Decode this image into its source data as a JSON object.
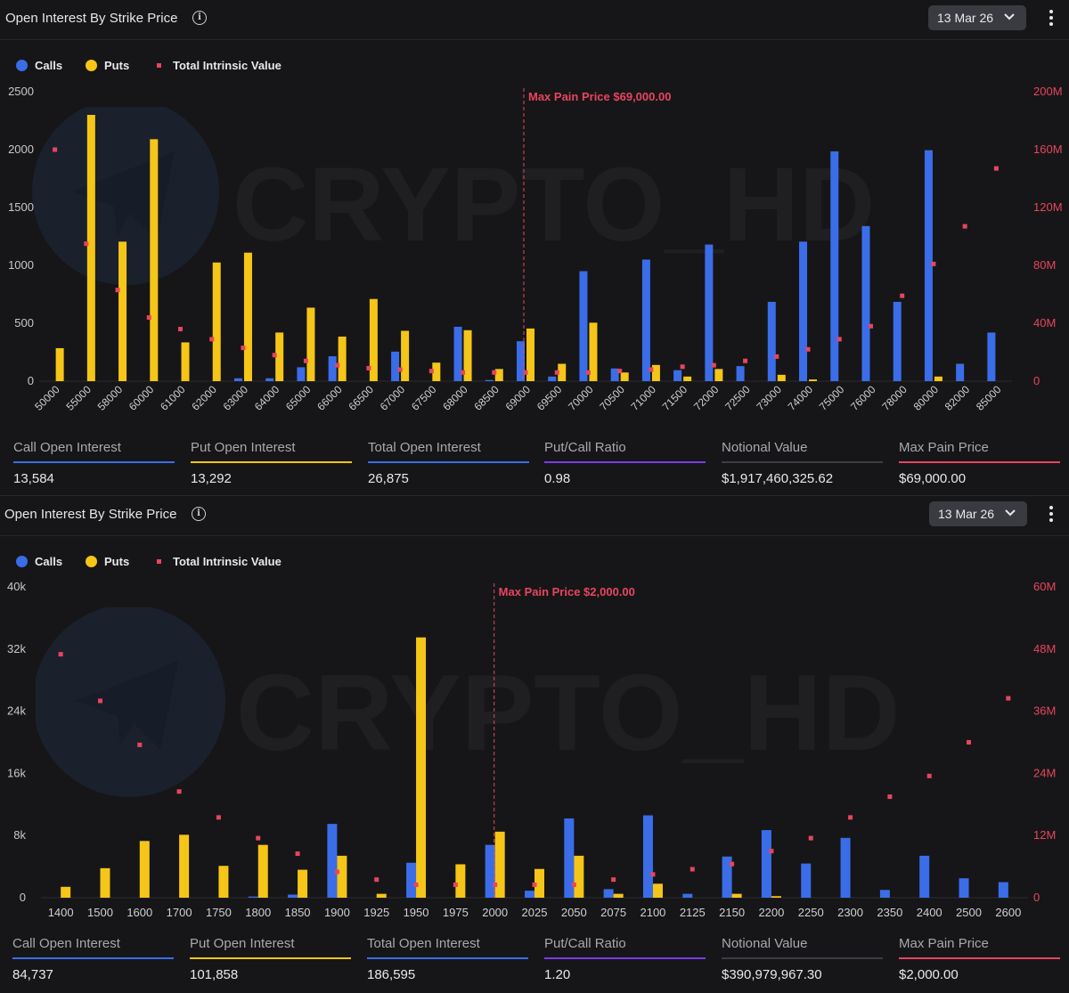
{
  "panels": [
    {
      "title": "Open Interest By Strike Price",
      "date": "13 Mar 26",
      "legend": {
        "calls": "Calls",
        "puts": "Puts",
        "intrinsic": "Total Intrinsic Value"
      },
      "watermark": "CRYPTO_HD",
      "stats": [
        {
          "label": "Call Open Interest",
          "value": "13,584",
          "color": "#3b6de8"
        },
        {
          "label": "Put Open Interest",
          "value": "13,292",
          "color": "#f5c518"
        },
        {
          "label": "Total Open Interest",
          "value": "26,875",
          "color": "#3b6de8"
        },
        {
          "label": "Put/Call Ratio",
          "value": "0.98",
          "color": "#7a3be8"
        },
        {
          "label": "Notional Value",
          "value": "$1,917,460,325.62",
          "color": "#3c3d44"
        },
        {
          "label": "Max Pain Price",
          "value": "$69,000.00",
          "color": "#e8455e"
        }
      ]
    },
    {
      "title": "Open Interest By Strike Price",
      "date": "13 Mar 26",
      "legend": {
        "calls": "Calls",
        "puts": "Puts",
        "intrinsic": "Total Intrinsic Value"
      },
      "watermark": "CRYPTO_HD",
      "stats": [
        {
          "label": "Call Open Interest",
          "value": "84,737",
          "color": "#3b6de8"
        },
        {
          "label": "Put Open Interest",
          "value": "101,858",
          "color": "#f5c518"
        },
        {
          "label": "Total Open Interest",
          "value": "186,595",
          "color": "#3b6de8"
        },
        {
          "label": "Put/Call Ratio",
          "value": "1.20",
          "color": "#7a3be8"
        },
        {
          "label": "Notional Value",
          "value": "$390,979,967.30",
          "color": "#3c3d44"
        },
        {
          "label": "Max Pain Price",
          "value": "$2,000.00",
          "color": "#e8455e"
        }
      ]
    }
  ],
  "colors": {
    "calls": "#3b6de8",
    "puts": "#f5c518",
    "intrinsic": "#e8455e"
  },
  "chart_data": [
    {
      "type": "bar",
      "title": "Open Interest By Strike Price",
      "categories": [
        "50000",
        "55000",
        "58000",
        "60000",
        "61000",
        "62000",
        "63000",
        "64000",
        "65000",
        "66000",
        "66500",
        "67000",
        "67500",
        "68000",
        "68500",
        "69000",
        "69500",
        "70000",
        "70500",
        "71000",
        "71500",
        "72000",
        "72500",
        "73000",
        "74000",
        "75000",
        "76000",
        "78000",
        "80000",
        "82000",
        "85000"
      ],
      "series": [
        {
          "name": "Calls",
          "axis": "left",
          "values": [
            0,
            0,
            0,
            0,
            0,
            0,
            25,
            25,
            120,
            215,
            0,
            255,
            0,
            470,
            10,
            345,
            40,
            950,
            110,
            1050,
            95,
            1180,
            130,
            685,
            1205,
            1985,
            1340,
            685,
            1995,
            150,
            420
          ]
        },
        {
          "name": "Puts",
          "axis": "left",
          "values": [
            285,
            2300,
            1205,
            2090,
            335,
            1025,
            1110,
            420,
            635,
            385,
            710,
            435,
            160,
            440,
            105,
            455,
            150,
            505,
            75,
            140,
            40,
            105,
            0,
            55,
            15,
            0,
            0,
            0,
            40,
            0,
            0
          ]
        },
        {
          "name": "Total Intrinsic Value",
          "axis": "right",
          "type": "scatter",
          "values": [
            160,
            95,
            63,
            44,
            36,
            29,
            23,
            18,
            14,
            11,
            9,
            8,
            7,
            6,
            6,
            6,
            6,
            6,
            7,
            8,
            10,
            11,
            14,
            17,
            22,
            29,
            38,
            59,
            81,
            107,
            147
          ]
        }
      ],
      "ylim": [
        0,
        2500
      ],
      "yticks": [
        "0",
        "500",
        "1000",
        "1500",
        "2000",
        "2500"
      ],
      "y2lim": [
        0,
        200
      ],
      "y2ticks": [
        "0",
        "40M",
        "80M",
        "120M",
        "160M",
        "200M"
      ],
      "max_pain_index": 15,
      "max_pain_label": "Max Pain Price $69,000.00"
    },
    {
      "type": "bar",
      "title": "Open Interest By Strike Price",
      "categories": [
        "1400",
        "1500",
        "1600",
        "1700",
        "1750",
        "1800",
        "1850",
        "1900",
        "1925",
        "1950",
        "1975",
        "2000",
        "2025",
        "2050",
        "2075",
        "2100",
        "2125",
        "2150",
        "2200",
        "2250",
        "2300",
        "2350",
        "2400",
        "2500",
        "2600"
      ],
      "series": [
        {
          "name": "Calls",
          "axis": "left",
          "values": [
            0,
            0,
            0,
            0,
            0,
            150,
            400,
            9500,
            0,
            4500,
            0,
            6800,
            900,
            10200,
            1100,
            10600,
            500,
            5300,
            8700,
            4400,
            7700,
            1000,
            5400,
            2500,
            2000
          ]
        },
        {
          "name": "Puts",
          "axis": "left",
          "values": [
            1400,
            3800,
            7300,
            8100,
            4100,
            6800,
            3600,
            5400,
            500,
            33500,
            4300,
            8500,
            3700,
            5400,
            500,
            1800,
            0,
            500,
            200,
            0,
            0,
            0,
            0,
            0,
            0
          ]
        },
        {
          "name": "Total Intrinsic Value",
          "axis": "right",
          "type": "scatter",
          "values": [
            47,
            38,
            29.5,
            20.5,
            15.5,
            11.5,
            8.5,
            5,
            3.5,
            2.5,
            2.5,
            2.5,
            2.5,
            2.5,
            3.5,
            4.5,
            5.5,
            6.5,
            9,
            11.5,
            15.5,
            19.5,
            23.5,
            30,
            38.5
          ]
        }
      ],
      "ylim": [
        0,
        40000
      ],
      "yticks": [
        "0",
        "8k",
        "16k",
        "24k",
        "32k",
        "40k"
      ],
      "y2lim": [
        0,
        60
      ],
      "y2ticks": [
        "0",
        "12M",
        "24M",
        "36M",
        "48M",
        "60M"
      ],
      "max_pain_index": 11,
      "max_pain_label": "Max Pain Price $2,000.00"
    }
  ]
}
